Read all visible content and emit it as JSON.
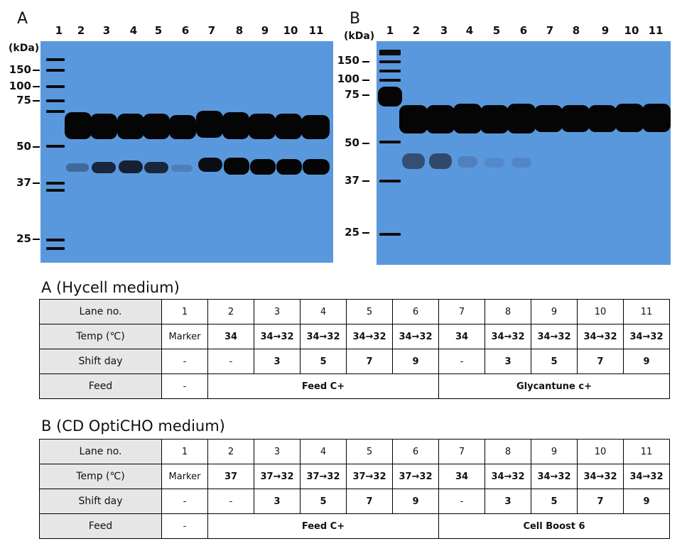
{
  "panelA": {
    "letter": "A",
    "lanes": [
      "1",
      "2",
      "3",
      "4",
      "5",
      "6",
      "7",
      "8",
      "9",
      "10",
      "11"
    ],
    "unit": "(kDa)",
    "markers": [
      "150",
      "100",
      "75",
      "50",
      "37",
      "25"
    ]
  },
  "panelB": {
    "letter": "B",
    "lanes": [
      "1",
      "2",
      "3",
      "4",
      "5",
      "6",
      "7",
      "8",
      "9",
      "10",
      "11"
    ],
    "unit": "(kDa)",
    "markers": [
      "150",
      "100",
      "75",
      "50",
      "37",
      "25"
    ]
  },
  "tableA": {
    "title": "A (Hycell medium)",
    "row_headers": [
      "Lane no.",
      "Temp (℃)",
      "Shift day",
      "Feed"
    ],
    "lanes": [
      "1",
      "2",
      "3",
      "4",
      "5",
      "6",
      "7",
      "8",
      "9",
      "10",
      "11"
    ],
    "temps": [
      "Marker",
      "34",
      "34→32",
      "34→32",
      "34→32",
      "34→32",
      "34",
      "34→32",
      "34→32",
      "34→32",
      "34→32"
    ],
    "shift_days": [
      "-",
      "-",
      "3",
      "5",
      "7",
      "9",
      "-",
      "3",
      "5",
      "7",
      "9"
    ],
    "feed_marker": "-",
    "feed_group1": "Feed C+",
    "feed_group2": "Glycantune c+"
  },
  "tableB": {
    "title": "B (CD OptiCHO medium)",
    "row_headers": [
      "Lane no.",
      "Temp (℃)",
      "Shift day",
      "Feed"
    ],
    "lanes": [
      "1",
      "2",
      "3",
      "4",
      "5",
      "6",
      "7",
      "8",
      "9",
      "10",
      "11"
    ],
    "temps": [
      "Marker",
      "37",
      "37→32",
      "37→32",
      "37→32",
      "37→32",
      "34",
      "34→32",
      "34→32",
      "34→32",
      "34→32"
    ],
    "shift_days": [
      "-",
      "-",
      "3",
      "5",
      "7",
      "9",
      "-",
      "3",
      "5",
      "7",
      "9"
    ],
    "feed_marker": "-",
    "feed_group1": "Feed C+",
    "feed_group2": "Cell Boost 6"
  }
}
